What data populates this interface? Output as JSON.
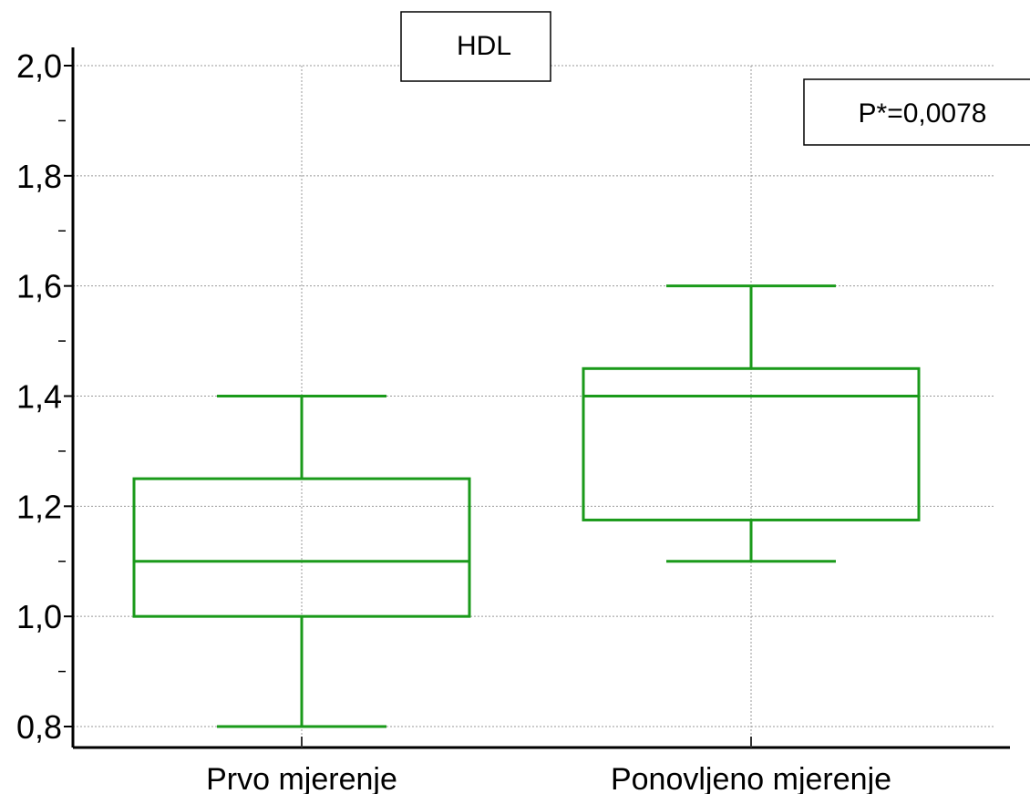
{
  "chart_data": {
    "type": "box",
    "title": "HDL",
    "annotation": "P*=0,0078",
    "ylim": [
      0.8,
      2.0
    ],
    "y_ticks": [
      "0,8",
      "1,0",
      "1,2",
      "1,4",
      "1,6",
      "1,8",
      "2,0"
    ],
    "y_tick_values": [
      0.8,
      1.0,
      1.2,
      1.4,
      1.6,
      1.8,
      2.0
    ],
    "y_minor_ticks": [
      0.9,
      1.1,
      1.3,
      1.5,
      1.7,
      1.9
    ],
    "grid": true,
    "color": "#1a9a1a",
    "categories": [
      "Prvo mjerenje",
      "Ponovljeno mjerenje"
    ],
    "boxes": [
      {
        "category": "Prvo mjerenje",
        "min": 0.8,
        "q1": 1.0,
        "median": 1.1,
        "q3": 1.25,
        "max": 1.4
      },
      {
        "category": "Ponovljeno mjerenje",
        "min": 1.1,
        "q1": 1.175,
        "median": 1.4,
        "q3": 1.45,
        "max": 1.6
      }
    ]
  }
}
